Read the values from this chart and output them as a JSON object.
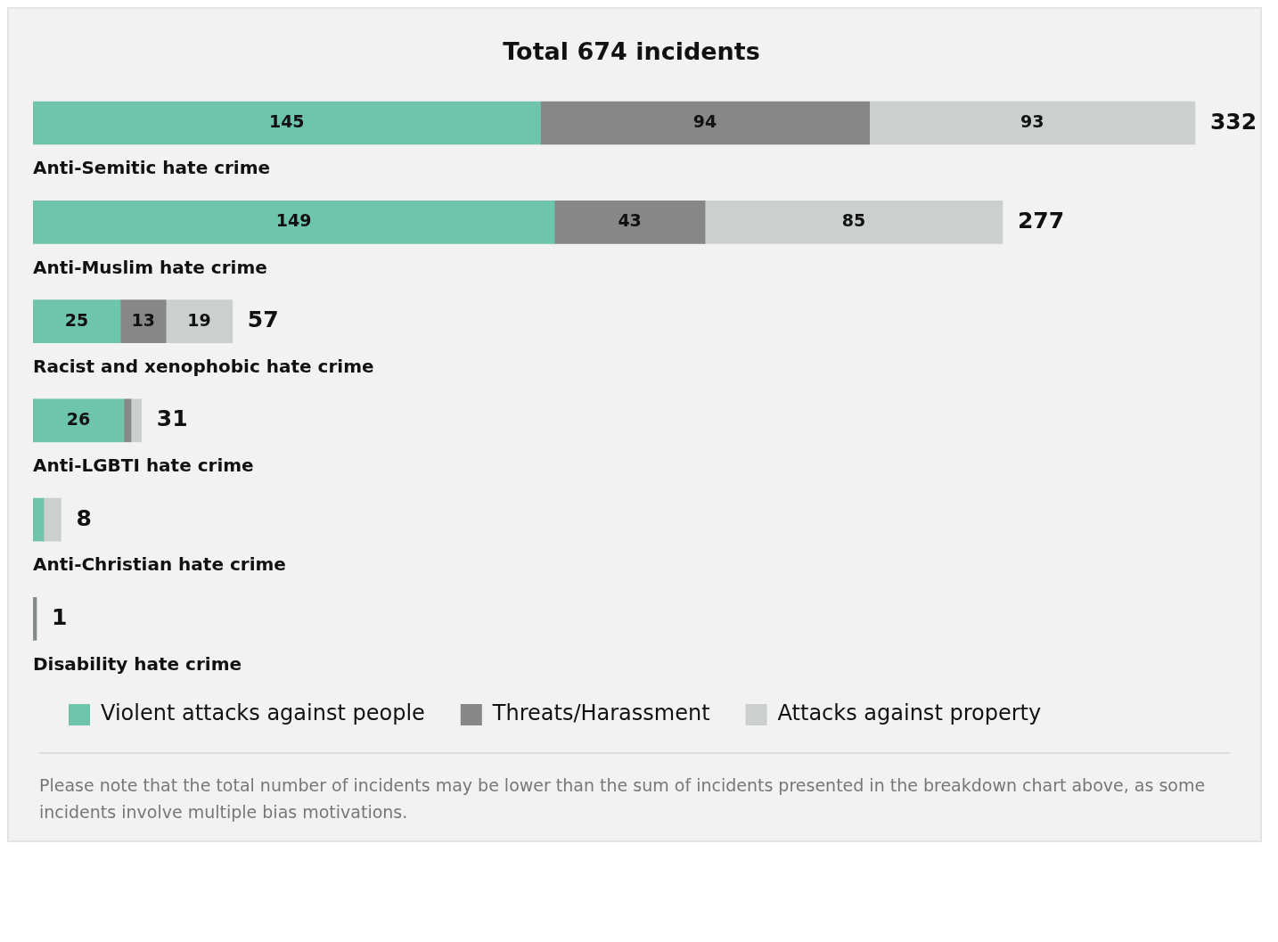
{
  "chart_data": {
    "type": "bar",
    "orientation": "horizontal",
    "stacked": true,
    "title": "Total 674 incidents",
    "categories": [
      "Anti-Semitic hate crime",
      "Anti-Muslim hate crime",
      "Racist and xenophobic hate crime",
      "Anti-LGBTI hate crime",
      "Anti-Christian hate crime",
      "Disability hate crime"
    ],
    "series": [
      {
        "name": "Violent attacks against people",
        "color": "#6fc5ac",
        "values": [
          145,
          149,
          25,
          26,
          3,
          0
        ],
        "value_labels": [
          "145",
          "149",
          "25",
          "26",
          null,
          null
        ]
      },
      {
        "name": "Threats/Harassment",
        "color": "#878787",
        "values": [
          94,
          43,
          13,
          2,
          0,
          1
        ],
        "value_labels": [
          "94",
          "43",
          "13",
          null,
          null,
          null
        ]
      },
      {
        "name": "Attacks against property",
        "color": "#cbcfcd",
        "values": [
          93,
          85,
          19,
          3,
          5,
          0
        ],
        "value_labels": [
          "93",
          "85",
          "19",
          null,
          null,
          null
        ]
      }
    ],
    "totals": [
      "332",
      "277",
      "57",
      "31",
      "8",
      "1"
    ],
    "legend": "bottom left",
    "annotations": [
      "Please note that the total number of incidents may be lower than the sum of incidents presented in the breakdown chart above, as some incidents involve multiple bias motivations."
    ]
  }
}
